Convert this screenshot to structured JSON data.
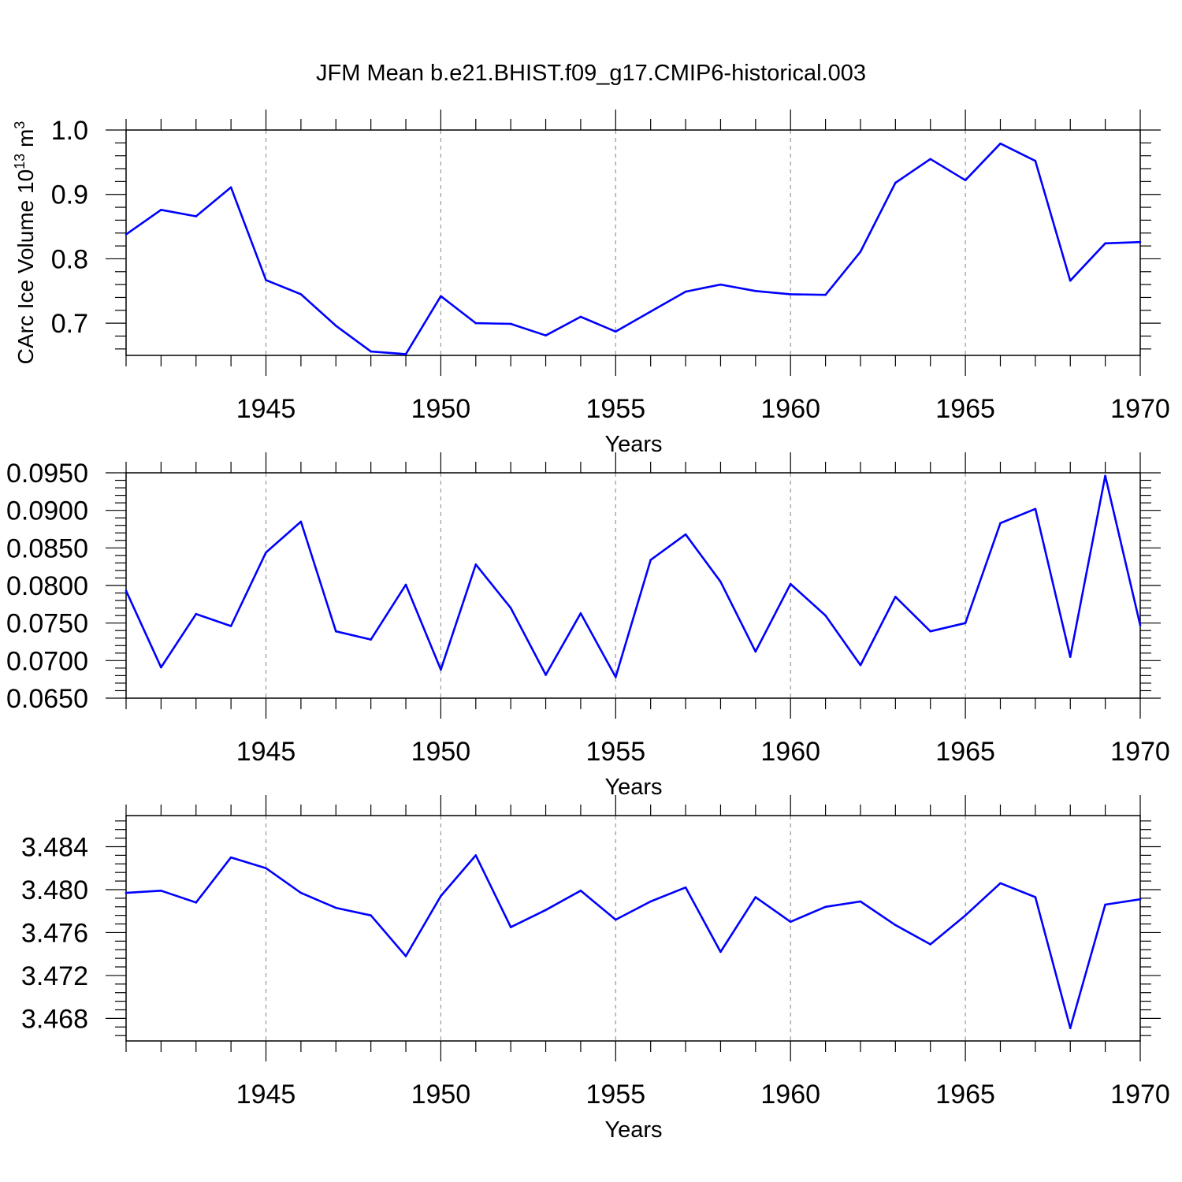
{
  "figure": {
    "title": "JFM Mean b.e21.BHIST.f09_g17.CMIP6-historical.003"
  },
  "colors": {
    "line": "#0000ff",
    "axes": "#000000",
    "grid": "#999999"
  },
  "chart_data": [
    {
      "type": "line",
      "title": "",
      "xlabel": "Years",
      "ylabel": "CArc Ice Volume",
      "ylabel_exponent_base": "10",
      "ylabel_exponent": "13",
      "ylabel_unit": "m",
      "ylabel_unit_power": "3",
      "x": [
        1941,
        1942,
        1943,
        1944,
        1945,
        1946,
        1947,
        1948,
        1949,
        1950,
        1951,
        1952,
        1953,
        1954,
        1955,
        1956,
        1957,
        1958,
        1959,
        1960,
        1961,
        1962,
        1963,
        1964,
        1965,
        1966,
        1967,
        1968,
        1969,
        1970
      ],
      "values": [
        0.838,
        0.876,
        0.866,
        0.911,
        0.767,
        0.745,
        0.696,
        0.656,
        0.652,
        0.742,
        0.7,
        0.699,
        0.681,
        0.71,
        0.687,
        0.718,
        0.749,
        0.76,
        0.75,
        0.745,
        0.744,
        0.811,
        0.918,
        0.955,
        0.922,
        0.979,
        0.952,
        0.766,
        0.824,
        0.826
      ],
      "xlim": [
        1941,
        1970
      ],
      "ylim": [
        0.65,
        1.0
      ],
      "xtick_labels": [
        "1945",
        "1950",
        "1955",
        "1960",
        "1965",
        "1970"
      ],
      "ytick_labels": [
        "0.7",
        "0.8",
        "0.9",
        "1.0"
      ],
      "grid": "x-dashed"
    },
    {
      "type": "line",
      "title": "",
      "xlabel": "Years",
      "ylabel": "",
      "x": [
        1941,
        1942,
        1943,
        1944,
        1945,
        1946,
        1947,
        1948,
        1949,
        1950,
        1951,
        1952,
        1953,
        1954,
        1955,
        1956,
        1957,
        1958,
        1959,
        1960,
        1961,
        1962,
        1963,
        1964,
        1965,
        1966,
        1967,
        1968,
        1969,
        1970
      ],
      "values": [
        0.0793,
        0.0691,
        0.0762,
        0.0746,
        0.0844,
        0.0885,
        0.0739,
        0.0728,
        0.0801,
        0.0688,
        0.0828,
        0.077,
        0.0681,
        0.0763,
        0.0678,
        0.0834,
        0.0868,
        0.0805,
        0.0712,
        0.0802,
        0.076,
        0.0694,
        0.0785,
        0.0739,
        0.075,
        0.0883,
        0.0902,
        0.0705,
        0.0946,
        0.0747
      ],
      "xlim": [
        1941,
        1970
      ],
      "ylim": [
        0.065,
        0.095
      ],
      "xtick_labels": [
        "1945",
        "1950",
        "1955",
        "1960",
        "1965",
        "1970"
      ],
      "ytick_labels": [
        "0.0650",
        "0.0700",
        "0.0750",
        "0.0800",
        "0.0850",
        "0.0900",
        "0.0950"
      ],
      "grid": "x-dashed"
    },
    {
      "type": "line",
      "title": "",
      "xlabel": "Years",
      "ylabel": "",
      "x": [
        1941,
        1942,
        1943,
        1944,
        1945,
        1946,
        1947,
        1948,
        1949,
        1950,
        1951,
        1952,
        1953,
        1954,
        1955,
        1956,
        1957,
        1958,
        1959,
        1960,
        1961,
        1962,
        1963,
        1964,
        1965,
        1966,
        1967,
        1968,
        1969,
        1970
      ],
      "values": [
        3.4797,
        3.4799,
        3.4788,
        3.483,
        3.482,
        3.4797,
        3.4783,
        3.4776,
        3.4738,
        3.4794,
        3.4832,
        3.4765,
        3.4781,
        3.4799,
        3.4772,
        3.4789,
        3.4802,
        3.4742,
        3.4793,
        3.477,
        3.4784,
        3.4789,
        3.4767,
        3.4749,
        3.4776,
        3.4806,
        3.4793,
        3.4671,
        3.4786,
        3.4791
      ],
      "xlim": [
        1941,
        1970
      ],
      "ylim": [
        3.4659,
        3.4869
      ],
      "xtick_labels": [
        "1945",
        "1950",
        "1955",
        "1960",
        "1965",
        "1970"
      ],
      "ytick_labels": [
        "3.468",
        "3.472",
        "3.476",
        "3.480",
        "3.484"
      ],
      "grid": "x-dashed"
    }
  ]
}
